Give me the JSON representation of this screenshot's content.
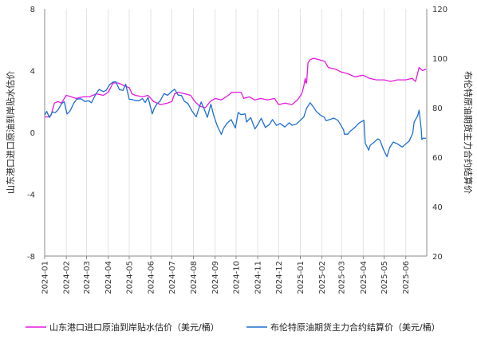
{
  "chart_data": {
    "type": "line",
    "x_ticks": [
      "2024-01",
      "2024-02",
      "2024-03",
      "2024-04",
      "2024-05",
      "2024-06",
      "2024-07",
      "2024-08",
      "2024-09",
      "2024-10",
      "2024-11",
      "2024-12",
      "2025-01",
      "2025-02",
      "2025-03",
      "2025-04",
      "2025-05",
      "2025-06"
    ],
    "x_range": [
      "2024-01-01",
      "2025-07-01"
    ],
    "y_left": {
      "label": "山东港口进口原油到岸贴水估价",
      "ticks": [
        "-8",
        "-4",
        "0",
        "4",
        "8"
      ],
      "ylim": [
        -8,
        8
      ]
    },
    "y_right": {
      "label": "布伦特原油期货主力合约结算价",
      "ticks": [
        "20",
        "40",
        "60",
        "80",
        "100",
        "120"
      ],
      "ylim": [
        20,
        120
      ]
    },
    "grid": "vertical",
    "legend_position": "bottom",
    "series": [
      {
        "name": "山东港口进口原油到岸贴水估价（美元/桶）",
        "axis": "left",
        "color": "#e619e0",
        "points": [
          [
            "2024-01-01",
            1.0
          ],
          [
            "2024-01-05",
            1.0
          ],
          [
            "2024-01-10",
            1.1
          ],
          [
            "2024-01-15",
            1.9
          ],
          [
            "2024-01-20",
            2.0
          ],
          [
            "2024-01-25",
            1.9
          ],
          [
            "2024-02-01",
            2.4
          ],
          [
            "2024-02-08",
            2.3
          ],
          [
            "2024-02-15",
            2.2
          ],
          [
            "2024-02-25",
            2.3
          ],
          [
            "2024-03-05",
            2.3
          ],
          [
            "2024-03-15",
            2.5
          ],
          [
            "2024-03-25",
            2.4
          ],
          [
            "2024-04-01",
            2.6
          ],
          [
            "2024-04-08",
            3.2
          ],
          [
            "2024-04-15",
            3.2
          ],
          [
            "2024-04-20",
            3.1
          ],
          [
            "2024-04-25",
            3.0
          ],
          [
            "2024-05-01",
            2.9
          ],
          [
            "2024-05-05",
            2.5
          ],
          [
            "2024-05-10",
            2.4
          ],
          [
            "2024-05-20",
            2.3
          ],
          [
            "2024-05-28",
            2.4
          ],
          [
            "2024-06-05",
            2.0
          ],
          [
            "2024-06-15",
            1.8
          ],
          [
            "2024-06-25",
            1.9
          ],
          [
            "2024-07-01",
            2.0
          ],
          [
            "2024-07-05",
            2.5
          ],
          [
            "2024-07-10",
            2.6
          ],
          [
            "2024-07-20",
            2.5
          ],
          [
            "2024-07-28",
            2.4
          ],
          [
            "2024-08-03",
            2.0
          ],
          [
            "2024-08-10",
            1.7
          ],
          [
            "2024-08-18",
            1.6
          ],
          [
            "2024-08-25",
            2.0
          ],
          [
            "2024-09-01",
            2.2
          ],
          [
            "2024-09-10",
            2.1
          ],
          [
            "2024-09-20",
            2.4
          ],
          [
            "2024-09-25",
            2.6
          ],
          [
            "2024-10-01",
            2.6
          ],
          [
            "2024-10-08",
            2.6
          ],
          [
            "2024-10-12",
            2.2
          ],
          [
            "2024-10-20",
            2.3
          ],
          [
            "2024-10-28",
            2.1
          ],
          [
            "2024-11-05",
            2.2
          ],
          [
            "2024-11-15",
            2.1
          ],
          [
            "2024-11-25",
            2.2
          ],
          [
            "2024-12-01",
            1.8
          ],
          [
            "2024-12-10",
            1.9
          ],
          [
            "2024-12-20",
            1.8
          ],
          [
            "2024-12-28",
            2.1
          ],
          [
            "2025-01-03",
            2.5
          ],
          [
            "2025-01-06",
            3.0
          ],
          [
            "2025-01-08",
            3.5
          ],
          [
            "2025-01-09",
            3.2
          ],
          [
            "2025-01-10",
            3.2
          ],
          [
            "2025-01-12",
            4.5
          ],
          [
            "2025-01-15",
            4.7
          ],
          [
            "2025-01-20",
            4.8
          ],
          [
            "2025-01-28",
            4.7
          ],
          [
            "2025-02-05",
            4.6
          ],
          [
            "2025-02-10",
            4.2
          ],
          [
            "2025-02-20",
            4.1
          ],
          [
            "2025-03-01",
            3.9
          ],
          [
            "2025-03-10",
            3.8
          ],
          [
            "2025-03-20",
            3.6
          ],
          [
            "2025-04-01",
            3.7
          ],
          [
            "2025-04-10",
            3.5
          ],
          [
            "2025-04-20",
            3.4
          ],
          [
            "2025-05-01",
            3.4
          ],
          [
            "2025-05-10",
            3.3
          ],
          [
            "2025-05-20",
            3.4
          ],
          [
            "2025-06-01",
            3.4
          ],
          [
            "2025-06-10",
            3.5
          ],
          [
            "2025-06-15",
            3.3
          ],
          [
            "2025-06-20",
            4.2
          ],
          [
            "2025-06-25",
            4.0
          ],
          [
            "2025-06-30",
            4.1
          ]
        ]
      },
      {
        "name": "布伦特原油期货主力合约结算价（美元/桶）",
        "axis": "right",
        "color": "#1f6fd1",
        "points": [
          [
            "2024-01-01",
            77.0
          ],
          [
            "2024-01-04",
            78.5
          ],
          [
            "2024-01-08",
            76.0
          ],
          [
            "2024-01-12",
            78.3
          ],
          [
            "2024-01-16",
            78.0
          ],
          [
            "2024-01-20",
            79.0
          ],
          [
            "2024-01-25",
            81.5
          ],
          [
            "2024-01-29",
            82.5
          ],
          [
            "2024-02-02",
            77.5
          ],
          [
            "2024-02-06",
            78.5
          ],
          [
            "2024-02-12",
            82.0
          ],
          [
            "2024-02-16",
            83.5
          ],
          [
            "2024-02-22",
            83.6
          ],
          [
            "2024-02-28",
            82.5
          ],
          [
            "2024-03-04",
            82.8
          ],
          [
            "2024-03-08",
            82.0
          ],
          [
            "2024-03-14",
            85.4
          ],
          [
            "2024-03-19",
            87.4
          ],
          [
            "2024-03-25",
            86.5
          ],
          [
            "2024-03-29",
            87.0
          ],
          [
            "2024-04-03",
            89.3
          ],
          [
            "2024-04-08",
            90.4
          ],
          [
            "2024-04-12",
            90.5
          ],
          [
            "2024-04-17",
            87.3
          ],
          [
            "2024-04-22",
            87.0
          ],
          [
            "2024-04-26",
            89.5
          ],
          [
            "2024-05-01",
            83.4
          ],
          [
            "2024-05-06",
            83.3
          ],
          [
            "2024-05-10",
            82.8
          ],
          [
            "2024-05-15",
            82.8
          ],
          [
            "2024-05-20",
            83.7
          ],
          [
            "2024-05-24",
            82.1
          ],
          [
            "2024-05-28",
            84.2
          ],
          [
            "2024-06-03",
            77.5
          ],
          [
            "2024-06-06",
            79.8
          ],
          [
            "2024-06-10",
            81.6
          ],
          [
            "2024-06-14",
            82.6
          ],
          [
            "2024-06-20",
            85.7
          ],
          [
            "2024-06-25",
            85.0
          ],
          [
            "2024-07-01",
            86.6
          ],
          [
            "2024-07-05",
            87.5
          ],
          [
            "2024-07-10",
            85.1
          ],
          [
            "2024-07-15",
            84.9
          ],
          [
            "2024-07-19",
            82.6
          ],
          [
            "2024-07-24",
            81.7
          ],
          [
            "2024-07-30",
            78.6
          ],
          [
            "2024-08-05",
            76.3
          ],
          [
            "2024-08-08",
            79.2
          ],
          [
            "2024-08-12",
            82.3
          ],
          [
            "2024-08-16",
            79.7
          ],
          [
            "2024-08-21",
            76.1
          ],
          [
            "2024-08-26",
            81.4
          ],
          [
            "2024-08-30",
            76.9
          ],
          [
            "2024-09-04",
            72.7
          ],
          [
            "2024-09-10",
            69.2
          ],
          [
            "2024-09-13",
            71.6
          ],
          [
            "2024-09-18",
            73.7
          ],
          [
            "2024-09-24",
            75.2
          ],
          [
            "2024-09-30",
            71.8
          ],
          [
            "2024-10-04",
            78.1
          ],
          [
            "2024-10-08",
            77.2
          ],
          [
            "2024-10-14",
            77.5
          ],
          [
            "2024-10-16",
            74.2
          ],
          [
            "2024-10-22",
            76.0
          ],
          [
            "2024-10-28",
            71.4
          ],
          [
            "2024-11-01",
            73.1
          ],
          [
            "2024-11-06",
            75.7
          ],
          [
            "2024-11-12",
            72.0
          ],
          [
            "2024-11-18",
            73.3
          ],
          [
            "2024-11-22",
            75.2
          ],
          [
            "2024-11-28",
            72.8
          ],
          [
            "2024-12-03",
            73.6
          ],
          [
            "2024-12-10",
            72.2
          ],
          [
            "2024-12-16",
            73.9
          ],
          [
            "2024-12-20",
            72.9
          ],
          [
            "2024-12-26",
            73.3
          ],
          [
            "2024-12-31",
            74.6
          ],
          [
            "2025-01-06",
            76.3
          ],
          [
            "2025-01-10",
            79.8
          ],
          [
            "2025-01-15",
            82.0
          ],
          [
            "2025-01-20",
            80.2
          ],
          [
            "2025-01-24",
            78.5
          ],
          [
            "2025-01-30",
            76.9
          ],
          [
            "2025-02-04",
            76.2
          ],
          [
            "2025-02-07",
            74.7
          ],
          [
            "2025-02-12",
            75.2
          ],
          [
            "2025-02-18",
            75.8
          ],
          [
            "2025-02-24",
            74.8
          ],
          [
            "2025-03-04",
            71.0
          ],
          [
            "2025-03-05",
            69.3
          ],
          [
            "2025-03-10",
            69.3
          ],
          [
            "2025-03-14",
            70.6
          ],
          [
            "2025-03-20",
            72.0
          ],
          [
            "2025-03-26",
            73.8
          ],
          [
            "2025-04-02",
            74.9
          ],
          [
            "2025-04-04",
            65.6
          ],
          [
            "2025-04-09",
            62.8
          ],
          [
            "2025-04-11",
            64.8
          ],
          [
            "2025-04-16",
            65.9
          ],
          [
            "2025-04-22",
            67.4
          ],
          [
            "2025-04-25",
            66.9
          ],
          [
            "2025-04-30",
            63.1
          ],
          [
            "2025-05-05",
            60.2
          ],
          [
            "2025-05-09",
            63.9
          ],
          [
            "2025-05-14",
            66.1
          ],
          [
            "2025-05-20",
            65.4
          ],
          [
            "2025-05-27",
            64.1
          ],
          [
            "2025-06-02",
            65.6
          ],
          [
            "2025-06-06",
            66.5
          ],
          [
            "2025-06-11",
            69.8
          ],
          [
            "2025-06-13",
            74.2
          ],
          [
            "2025-06-18",
            76.7
          ],
          [
            "2025-06-20",
            79.0
          ],
          [
            "2025-06-23",
            71.5
          ],
          [
            "2025-06-24",
            67.1
          ],
          [
            "2025-06-26",
            67.7
          ],
          [
            "2025-06-30",
            67.6
          ]
        ]
      }
    ]
  }
}
